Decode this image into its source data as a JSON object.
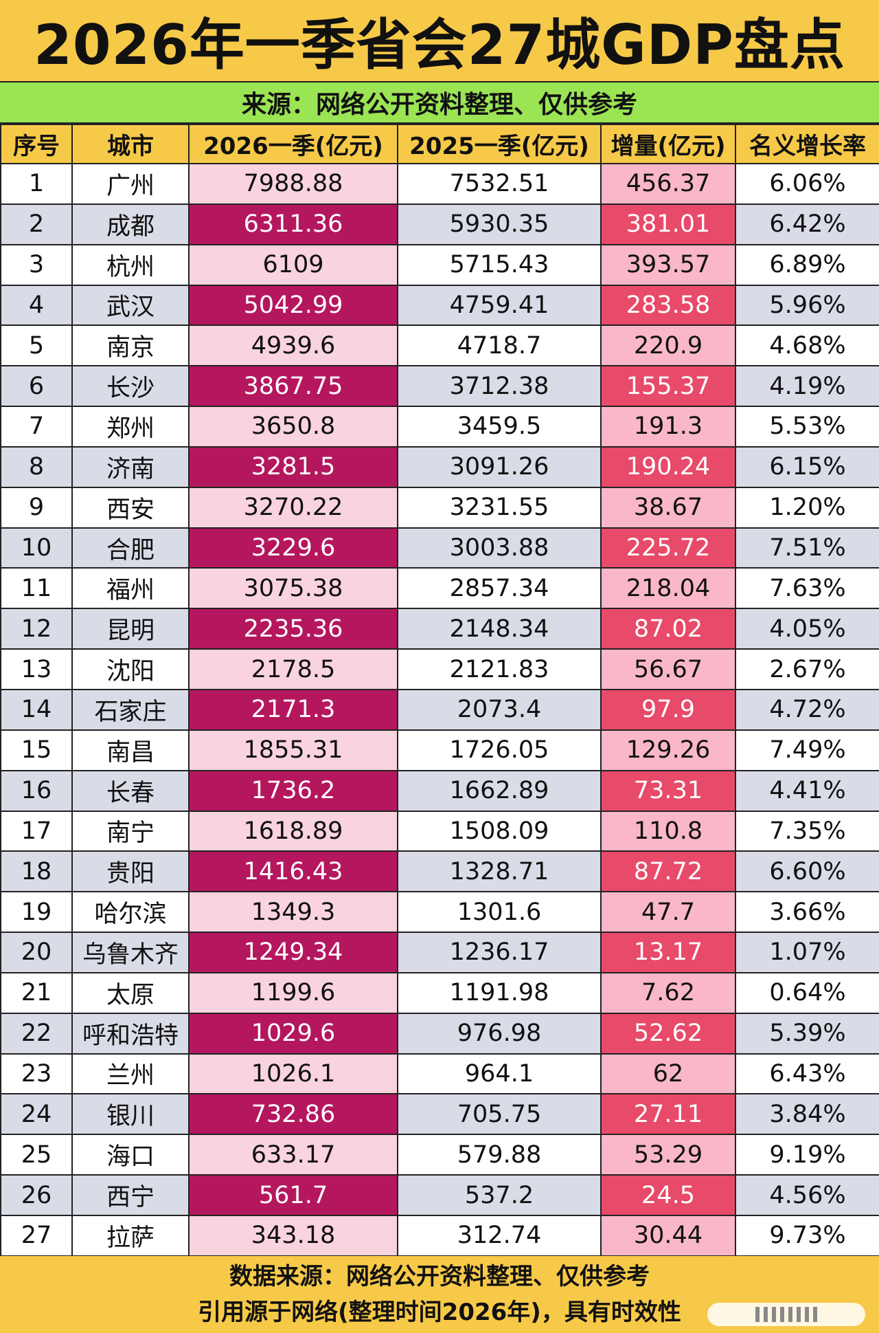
{
  "title": "2026年一季省会27城GDP盘点",
  "source_line": "来源：网络公开资料整理、仅供参考",
  "columns": [
    "序号",
    "城市",
    "2026一季(亿元)",
    "2025一季(亿元)",
    "增量(亿元)",
    "名义增长率"
  ],
  "rows": [
    [
      "1",
      "广州",
      "7988.88",
      "7532.51",
      "456.37",
      "6.06%"
    ],
    [
      "2",
      "成都",
      "6311.36",
      "5930.35",
      "381.01",
      "6.42%"
    ],
    [
      "3",
      "杭州",
      "6109",
      "5715.43",
      "393.57",
      "6.89%"
    ],
    [
      "4",
      "武汉",
      "5042.99",
      "4759.41",
      "283.58",
      "5.96%"
    ],
    [
      "5",
      "南京",
      "4939.6",
      "4718.7",
      "220.9",
      "4.68%"
    ],
    [
      "6",
      "长沙",
      "3867.75",
      "3712.38",
      "155.37",
      "4.19%"
    ],
    [
      "7",
      "郑州",
      "3650.8",
      "3459.5",
      "191.3",
      "5.53%"
    ],
    [
      "8",
      "济南",
      "3281.5",
      "3091.26",
      "190.24",
      "6.15%"
    ],
    [
      "9",
      "西安",
      "3270.22",
      "3231.55",
      "38.67",
      "1.20%"
    ],
    [
      "10",
      "合肥",
      "3229.6",
      "3003.88",
      "225.72",
      "7.51%"
    ],
    [
      "11",
      "福州",
      "3075.38",
      "2857.34",
      "218.04",
      "7.63%"
    ],
    [
      "12",
      "昆明",
      "2235.36",
      "2148.34",
      "87.02",
      "4.05%"
    ],
    [
      "13",
      "沈阳",
      "2178.5",
      "2121.83",
      "56.67",
      "2.67%"
    ],
    [
      "14",
      "石家庄",
      "2171.3",
      "2073.4",
      "97.9",
      "4.72%"
    ],
    [
      "15",
      "南昌",
      "1855.31",
      "1726.05",
      "129.26",
      "7.49%"
    ],
    [
      "16",
      "长春",
      "1736.2",
      "1662.89",
      "73.31",
      "4.41%"
    ],
    [
      "17",
      "南宁",
      "1618.89",
      "1508.09",
      "110.8",
      "7.35%"
    ],
    [
      "18",
      "贵阳",
      "1416.43",
      "1328.71",
      "87.72",
      "6.60%"
    ],
    [
      "19",
      "哈尔滨",
      "1349.3",
      "1301.6",
      "47.7",
      "3.66%"
    ],
    [
      "20",
      "乌鲁木齐",
      "1249.34",
      "1236.17",
      "13.17",
      "1.07%"
    ],
    [
      "21",
      "太原",
      "1199.6",
      "1191.98",
      "7.62",
      "0.64%"
    ],
    [
      "22",
      "呼和浩特",
      "1029.6",
      "976.98",
      "52.62",
      "5.39%"
    ],
    [
      "23",
      "兰州",
      "1026.1",
      "964.1",
      "62",
      "6.43%"
    ],
    [
      "24",
      "银川",
      "732.86",
      "705.75",
      "27.11",
      "3.84%"
    ],
    [
      "25",
      "海口",
      "633.17",
      "579.88",
      "53.29",
      "9.19%"
    ],
    [
      "26",
      "西宁",
      "561.7",
      "537.2",
      "24.5",
      "4.56%"
    ],
    [
      "27",
      "拉萨",
      "343.18",
      "312.74",
      "30.44",
      "9.73%"
    ]
  ],
  "footer": {
    "line1": "数据来源：网络公开资料整理、仅供参考",
    "line2": "引用源于网络(整理时间2026年)，具有时效性"
  },
  "colors": {
    "header_bg": "#f7c948",
    "source_bg": "#9be454",
    "magenta": "#b5175f",
    "pink_light": "#f9d3de",
    "red_increase": "#e84a6a",
    "pink_increase": "#f9b7c7",
    "row_alt": "#d9dbe6"
  }
}
